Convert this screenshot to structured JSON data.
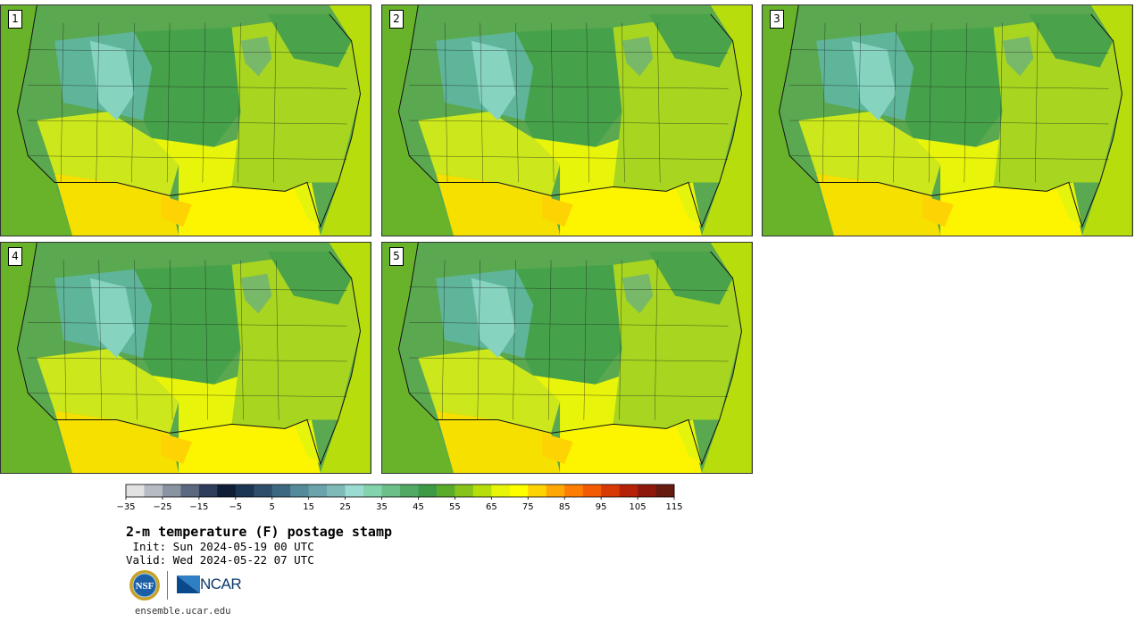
{
  "figure": {
    "title": "2-m temperature (F) postage stamp",
    "init_line": " Init: Sun 2024-05-19 00 UTC",
    "valid_line": "Valid: Wed 2024-05-22 07 UTC",
    "website": "ensemble.ucar.edu",
    "logos": {
      "nsf_text": "NSF",
      "ncar_text": "NCAR"
    }
  },
  "panels": [
    {
      "label": "1"
    },
    {
      "label": "2"
    },
    {
      "label": "3"
    },
    {
      "label": "4"
    },
    {
      "label": "5"
    }
  ],
  "colorbar": {
    "tick_labels": [
      "−35",
      "−25",
      "−15",
      "−5",
      "5",
      "15",
      "25",
      "35",
      "45",
      "55",
      "65",
      "75",
      "85",
      "95",
      "105",
      "115"
    ],
    "colors": [
      "#e2e2e2",
      "#b7bcc4",
      "#8a93a2",
      "#5c6880",
      "#2f3d5c",
      "#0f1d36",
      "#1c3553",
      "#2e4e6b",
      "#3d6882",
      "#558a9a",
      "#6ba3ab",
      "#7fb9b8",
      "#9bdcd2",
      "#83d3ad",
      "#6cbf87",
      "#52a865",
      "#3d9b48",
      "#5bab2b",
      "#86c41c",
      "#b5de0c",
      "#e6f50a",
      "#fefe00",
      "#fed303",
      "#fea805",
      "#fd7e03",
      "#f45b00",
      "#d83a03",
      "#b52207",
      "#8e180c",
      "#661b10"
    ]
  }
}
